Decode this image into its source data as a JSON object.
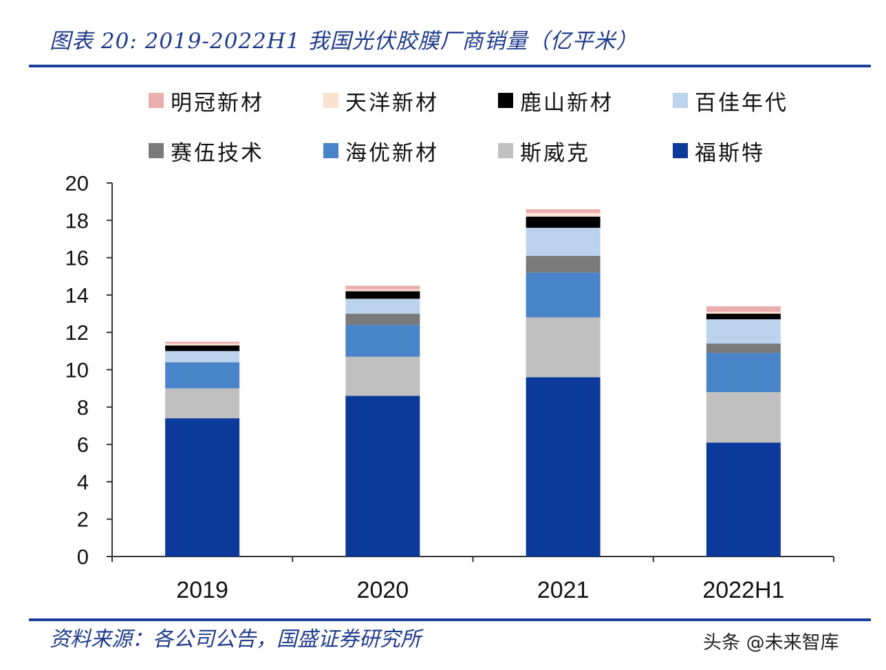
{
  "header": {
    "title": "图表 20:  2019-2022H1 我国光伏胶膜厂商销量（亿平米）"
  },
  "footer": {
    "source": "资料来源：各公司公告，国盛证券研究所",
    "watermark": "头条 @未来智库"
  },
  "chart_data": {
    "type": "bar",
    "stacked": true,
    "title": "2019-2022H1 我国光伏胶膜厂商销量（亿平米）",
    "unit": "亿平米",
    "categories": [
      "2019",
      "2020",
      "2021",
      "2022H1"
    ],
    "ylim": [
      0,
      20
    ],
    "yticks": [
      0,
      2,
      4,
      6,
      8,
      10,
      12,
      14,
      16,
      18,
      20
    ],
    "series": [
      {
        "name": "福斯特",
        "color": "#0b3a9b",
        "values": [
          7.4,
          8.6,
          9.6,
          6.1
        ]
      },
      {
        "name": "斯威克",
        "color": "#c0c0c0",
        "values": [
          1.6,
          2.1,
          3.2,
          2.7
        ]
      },
      {
        "name": "海优新材",
        "color": "#4a84c8",
        "values": [
          1.4,
          1.7,
          2.4,
          2.1
        ]
      },
      {
        "name": "赛伍技术",
        "color": "#7a7a7a",
        "values": [
          0.0,
          0.6,
          0.9,
          0.5
        ]
      },
      {
        "name": "百佳年代",
        "color": "#bcd3ee",
        "values": [
          0.6,
          0.8,
          1.5,
          1.3
        ]
      },
      {
        "name": "鹿山新材",
        "color": "#000000",
        "values": [
          0.3,
          0.4,
          0.6,
          0.3
        ]
      },
      {
        "name": "天洋新材",
        "color": "#fbe1d0",
        "values": [
          0.1,
          0.1,
          0.2,
          0.1
        ]
      },
      {
        "name": "明冠新材",
        "color": "#e9aeae",
        "values": [
          0.1,
          0.2,
          0.2,
          0.3
        ]
      }
    ],
    "legend_order": [
      "明冠新材",
      "天洋新材",
      "鹿山新材",
      "百佳年代",
      "赛伍技术",
      "海优新材",
      "斯威克",
      "福斯特"
    ],
    "legend_position": "top",
    "grid": false
  }
}
